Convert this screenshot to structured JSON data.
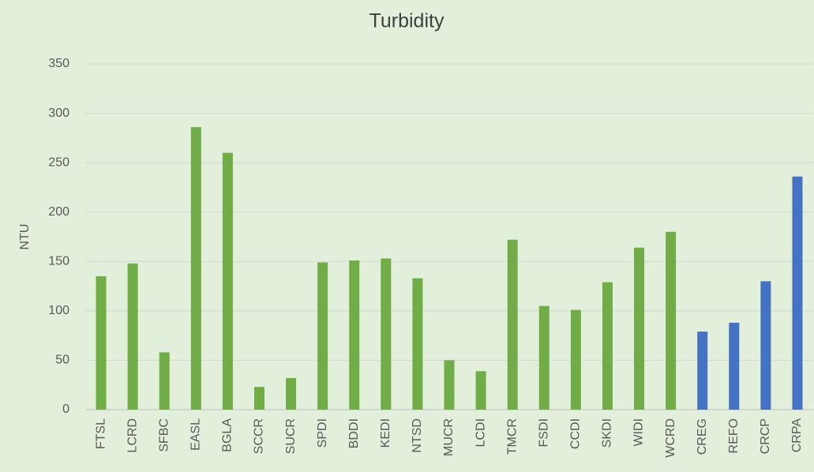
{
  "chart_data": {
    "type": "bar",
    "title": "Turbidity",
    "y_label": "NTU",
    "categories": [
      "FTSL",
      "LCRD",
      "SFBC",
      "EASL",
      "BGLA",
      "SCCR",
      "SUCR",
      "SPDI",
      "BDDI",
      "KEDI",
      "NTSD",
      "MUCR",
      "LCDI",
      "TMCR",
      "FSDI",
      "CCDI",
      "SKDI",
      "WIDI",
      "WCRD",
      "CREG",
      "REFO",
      "CRCP",
      "CRPA"
    ],
    "values": [
      135,
      148,
      58,
      286,
      260,
      23,
      32,
      149,
      151,
      153,
      133,
      50,
      39,
      172,
      105,
      101,
      129,
      164,
      180,
      79,
      88,
      130,
      236
    ],
    "colors": [
      "#70ad47",
      "#70ad47",
      "#70ad47",
      "#70ad47",
      "#70ad47",
      "#70ad47",
      "#70ad47",
      "#70ad47",
      "#70ad47",
      "#70ad47",
      "#70ad47",
      "#70ad47",
      "#70ad47",
      "#70ad47",
      "#70ad47",
      "#70ad47",
      "#70ad47",
      "#70ad47",
      "#70ad47",
      "#4472c4",
      "#4472c4",
      "#4472c4",
      "#4472c4"
    ],
    "ylim": [
      0,
      350
    ],
    "yticks": [
      0,
      50,
      100,
      150,
      200,
      250,
      300,
      350
    ],
    "grid": true
  }
}
